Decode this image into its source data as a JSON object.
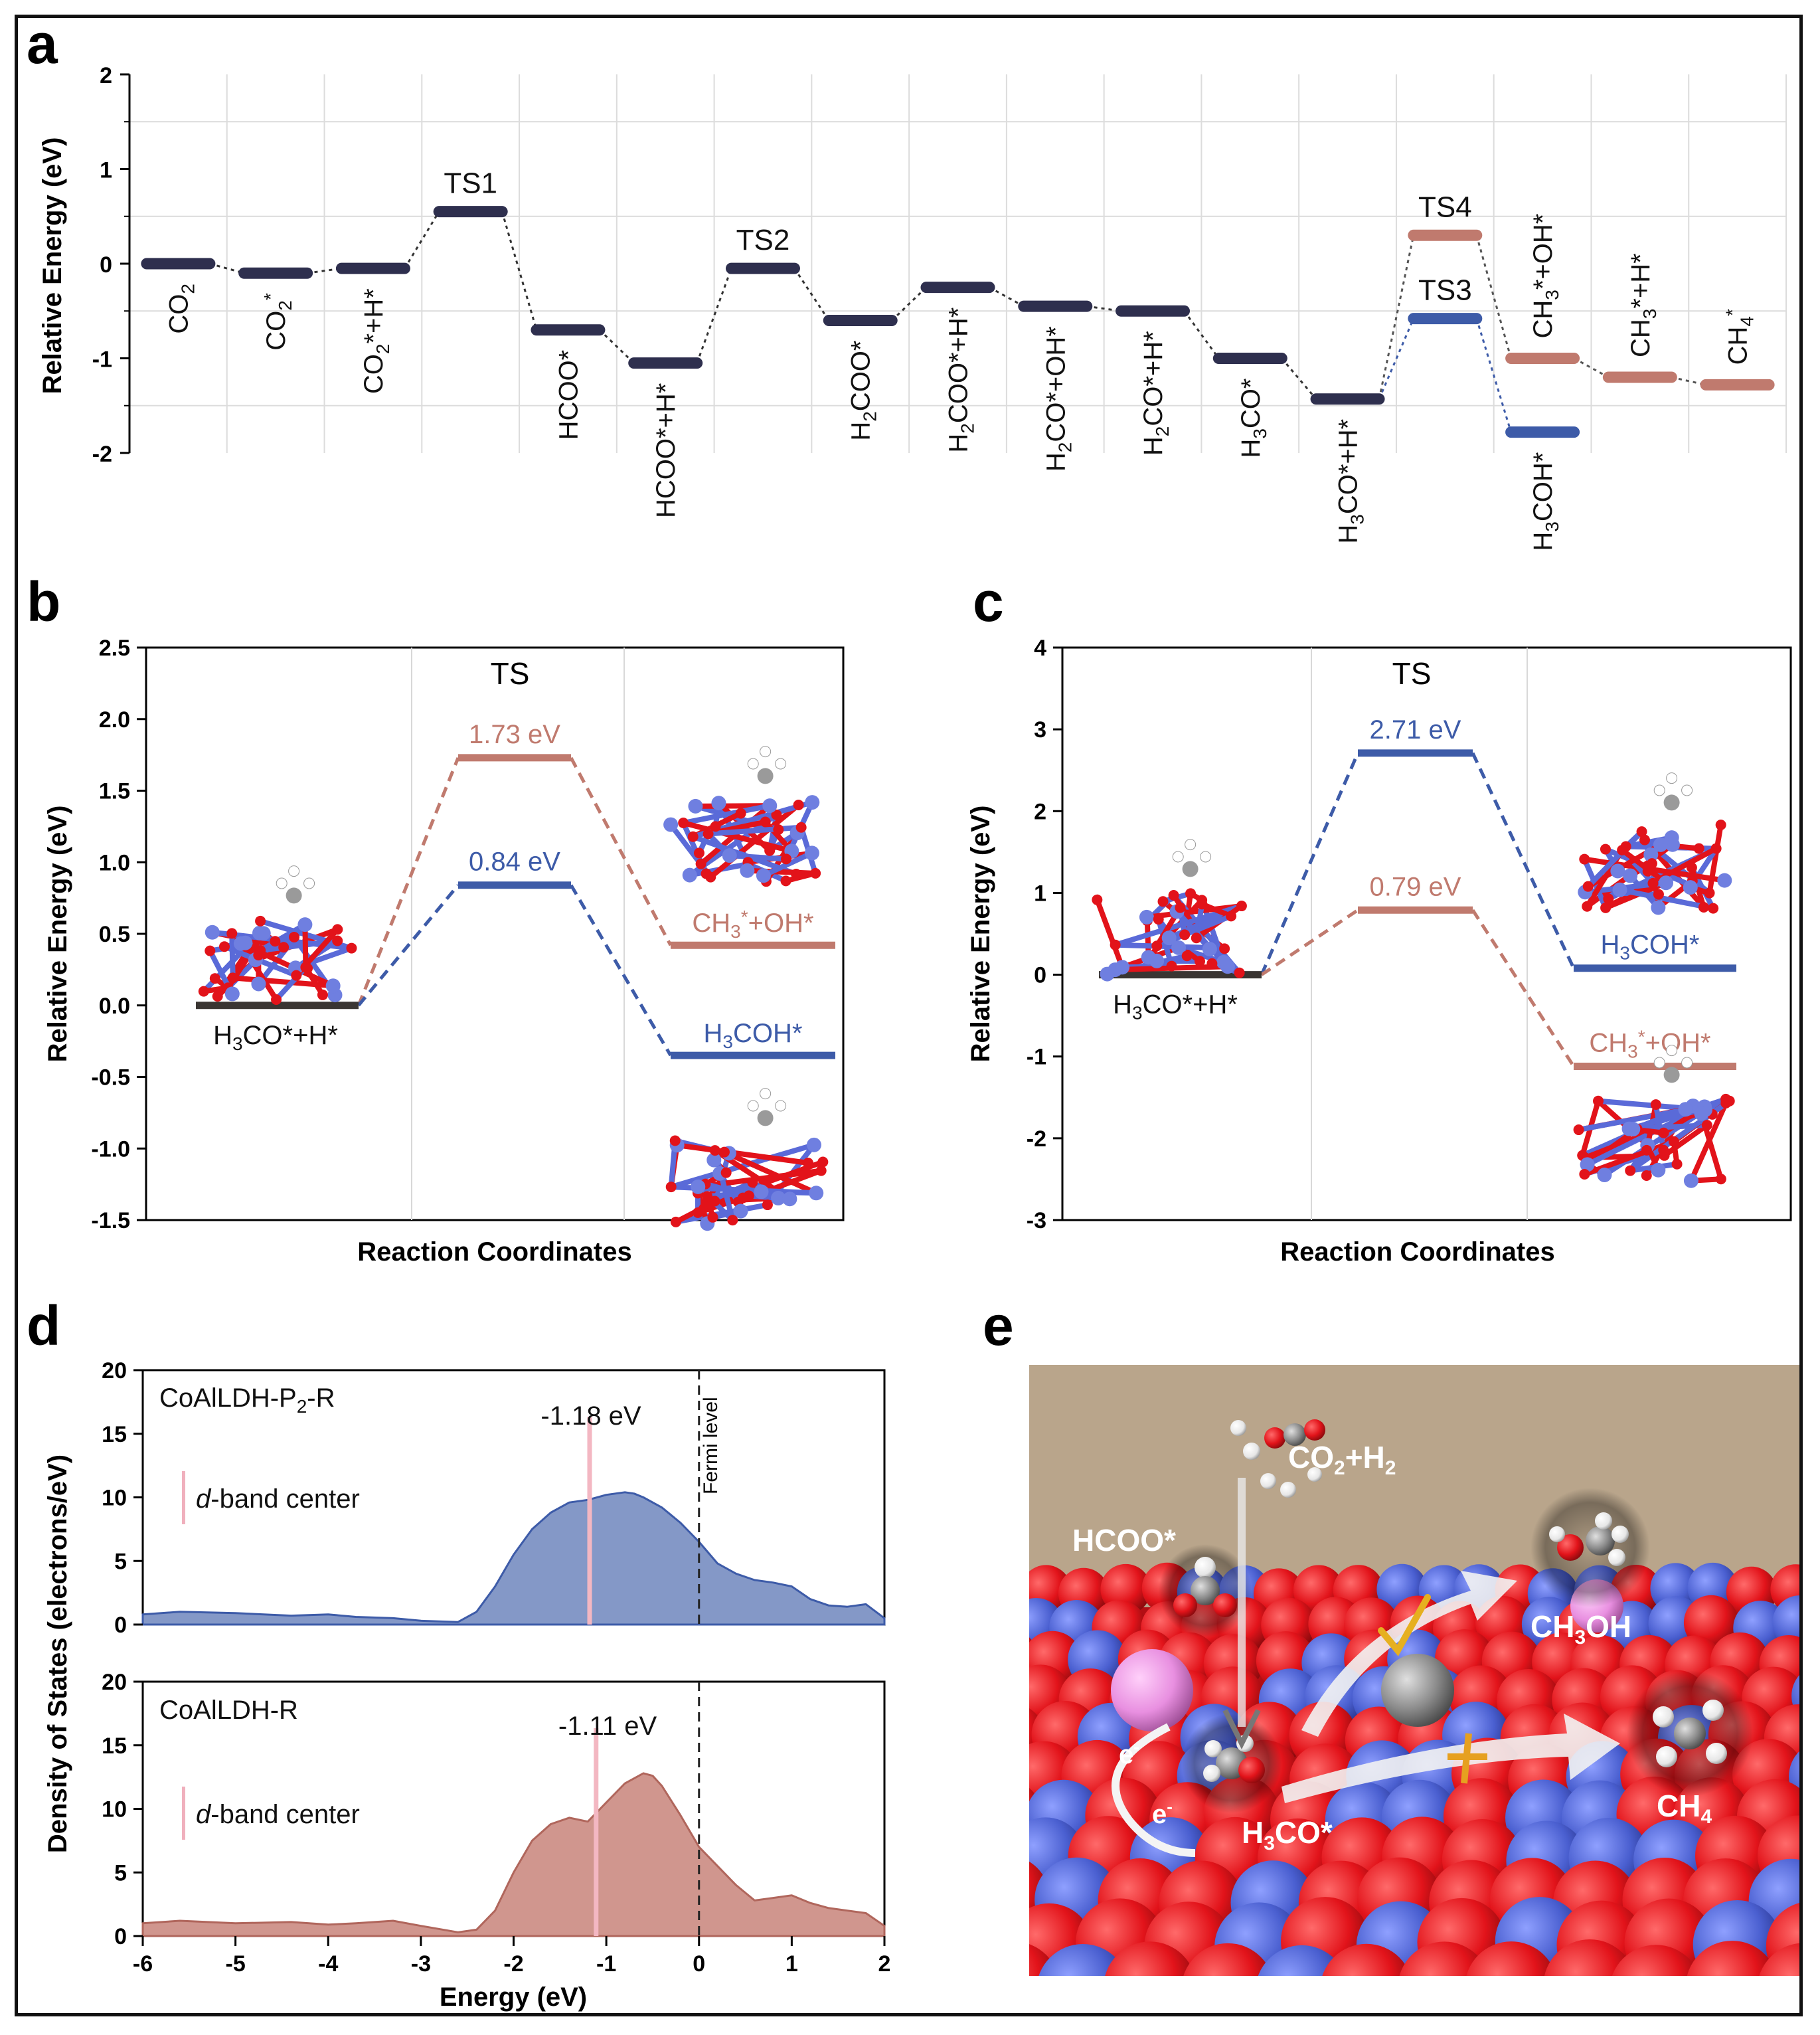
{
  "panel_labels": {
    "a": "a",
    "b": "b",
    "c": "c",
    "d": "d",
    "e": "e"
  },
  "chart_data": [
    {
      "id": "a",
      "type": "energy-profile",
      "ylabel": "Relative Energy (eV)",
      "ylim": [
        -2,
        2
      ],
      "yticks": [
        "2",
        "1",
        "0",
        "-1",
        "-2"
      ],
      "grid": true,
      "states": [
        {
          "label": "CO2",
          "lbl_html": "CO<tspan dy='10' font-size='28'>2</tspan>",
          "value": 0.0,
          "pathway": "main",
          "label_pos": "below"
        },
        {
          "label": "CO2*",
          "lbl_html": "CO<tspan dy='10' font-size='28'>2</tspan><tspan dy='-22' font-size='28'>*</tspan>",
          "value": -0.1,
          "pathway": "main",
          "label_pos": "below"
        },
        {
          "label": "CO2*+H*",
          "lbl_html": "CO<tspan dy='10' font-size='28'>2</tspan><tspan dy='-10'>*+H*</tspan>",
          "value": -0.05,
          "pathway": "main",
          "label_pos": "below"
        },
        {
          "label": "TS1",
          "lbl_html": "TS1",
          "value": 0.55,
          "pathway": "main",
          "label_pos": "above"
        },
        {
          "label": "HCOO*",
          "lbl_html": "HCOO*",
          "value": -0.7,
          "pathway": "main",
          "label_pos": "below"
        },
        {
          "label": "HCOO*+H*",
          "lbl_html": "HCOO*+H*",
          "value": -1.05,
          "pathway": "main",
          "label_pos": "below"
        },
        {
          "label": "TS2",
          "lbl_html": "TS2",
          "value": -0.05,
          "pathway": "main",
          "label_pos": "above"
        },
        {
          "label": "H2COO*",
          "lbl_html": "H<tspan dy='10' font-size='28'>2</tspan><tspan dy='-10'>COO*</tspan>",
          "value": -0.6,
          "pathway": "main",
          "label_pos": "below"
        },
        {
          "label": "H2COO*+H*",
          "lbl_html": "H<tspan dy='10' font-size='28'>2</tspan><tspan dy='-10'>COO*+H*</tspan>",
          "value": -0.25,
          "pathway": "main",
          "label_pos": "below"
        },
        {
          "label": "H2CO*+OH*",
          "lbl_html": "H<tspan dy='10' font-size='28'>2</tspan><tspan dy='-10'>CO*+OH*</tspan>",
          "value": -0.45,
          "pathway": "main",
          "label_pos": "below"
        },
        {
          "label": "H2CO*+H*",
          "lbl_html": "H<tspan dy='10' font-size='28'>2</tspan><tspan dy='-10'>CO*+H*</tspan>",
          "value": -0.5,
          "pathway": "main",
          "label_pos": "below"
        },
        {
          "label": "H3CO*",
          "lbl_html": "H<tspan dy='10' font-size='28'>3</tspan><tspan dy='-10'>CO*</tspan>",
          "value": -1.0,
          "pathway": "main",
          "label_pos": "below"
        },
        {
          "label": "H3CO*+H*",
          "lbl_html": "H<tspan dy='10' font-size='28'>3</tspan><tspan dy='-10'>CO*+H*</tspan>",
          "value": -1.43,
          "pathway": "main",
          "label_pos": "below"
        }
      ],
      "branch_methanol": [
        {
          "label": "TS3",
          "lbl_html": "TS3",
          "value": -0.58,
          "label_pos": "above"
        },
        {
          "label": "H3COH*",
          "lbl_html": "H<tspan dy='10' font-size='28'>3</tspan><tspan dy='-10'>COH*</tspan>",
          "value": -1.78,
          "label_pos": "below"
        }
      ],
      "branch_methane": [
        {
          "label": "TS4",
          "lbl_html": "TS4",
          "value": 0.3,
          "label_pos": "above"
        },
        {
          "label": "CH3*+OH*",
          "lbl_html": "CH<tspan dy='10' font-size='28'>3</tspan><tspan dy='-10'>*+OH*</tspan>",
          "value": -1.0,
          "label_pos": "above"
        },
        {
          "label": "CH3*+H*",
          "lbl_html": "CH<tspan dy='10' font-size='28'>3</tspan><tspan dy='-10'>*+H*</tspan>",
          "value": -1.2,
          "label_pos": "above"
        },
        {
          "label": "CH4*",
          "lbl_html": "CH<tspan dy='10' font-size='28'>4</tspan><tspan dy='-22' font-size='28'>*</tspan>",
          "value": -1.28,
          "label_pos": "above"
        }
      ],
      "colors": {
        "main": "#2e2f4e",
        "methanol": "#3d5ba8",
        "methane": "#c07a6e"
      }
    },
    {
      "id": "b",
      "type": "energy-profile",
      "title": "TS",
      "xlabel": "Reaction Coordinates",
      "ylabel": "Relative Energy (eV)",
      "ylim": [
        -1.5,
        2.5
      ],
      "yticks": [
        "2.5",
        "2.0",
        "1.5",
        "1.0",
        "0.5",
        "0.0",
        "-0.5",
        "-1.0",
        "-1.5"
      ],
      "initial": {
        "label": "H3CO*+H*",
        "value": 0.0
      },
      "series": [
        {
          "name": "CH3*+OH*",
          "ts_value": 1.73,
          "ts_label": "1.73 eV",
          "final_value": 0.42,
          "color": "#c07a6e"
        },
        {
          "name": "H3COH*",
          "ts_value": 0.84,
          "ts_label": "0.84 eV",
          "final_value": -0.35,
          "color": "#3d5ba8"
        }
      ]
    },
    {
      "id": "c",
      "type": "energy-profile",
      "title": "TS",
      "xlabel": "Reaction Coordinates",
      "ylabel": "Relative Energy (eV)",
      "ylim": [
        -3,
        4
      ],
      "yticks": [
        "4",
        "3",
        "2",
        "1",
        "0",
        "-1",
        "-2",
        "-3"
      ],
      "initial": {
        "label": "H3CO*+H*",
        "value": 0.0
      },
      "series": [
        {
          "name": "H3COH*",
          "ts_value": 2.71,
          "ts_label": "2.71 eV",
          "final_value": 0.08,
          "color": "#3d5ba8"
        },
        {
          "name": "CH3*+OH*",
          "ts_value": 0.79,
          "ts_label": "0.79 eV",
          "final_value": -1.12,
          "color": "#c07a6e"
        }
      ]
    },
    {
      "id": "d",
      "type": "area",
      "xlabel": "Energy (eV)",
      "ylabel": "Density of States (electrons/eV)",
      "xlim": [
        -6,
        2
      ],
      "xticks": [
        "-6",
        "-5",
        "-4",
        "-3",
        "-2",
        "-1",
        "0",
        "1",
        "2"
      ],
      "fermi_label": "Fermi level",
      "legend": "d-band center",
      "subplots": [
        {
          "name": "CoAlLDH-P2-R",
          "ylim": [
            0,
            20
          ],
          "yticks": [
            "20",
            "15",
            "10",
            "5",
            "0"
          ],
          "dband_center": -1.18,
          "dband_label": "-1.18 eV",
          "color": "#6f86bd",
          "x": [
            -6,
            -5.6,
            -5,
            -4.4,
            -4,
            -3.7,
            -3.3,
            -3,
            -2.6,
            -2.4,
            -2.2,
            -2,
            -1.8,
            -1.6,
            -1.4,
            -1.2,
            -1.0,
            -0.8,
            -0.7,
            -0.6,
            -0.4,
            -0.2,
            0,
            0.2,
            0.4,
            0.6,
            0.8,
            1.0,
            1.2,
            1.4,
            1.6,
            1.8,
            2.0
          ],
          "y": [
            0.8,
            1.0,
            0.9,
            0.7,
            0.8,
            0.6,
            0.5,
            0.3,
            0.2,
            1.0,
            3.0,
            5.5,
            7.5,
            8.8,
            9.6,
            9.8,
            10.2,
            10.4,
            10.3,
            10.0,
            9.2,
            8.0,
            6.5,
            4.8,
            4.0,
            3.5,
            3.3,
            3.0,
            2.0,
            1.5,
            1.4,
            1.6,
            0.5
          ]
        },
        {
          "name": "CoAlLDH-R",
          "ylim": [
            0,
            20
          ],
          "yticks": [
            "20",
            "15",
            "10",
            "5",
            "0"
          ],
          "dband_center": -1.11,
          "dband_label": "-1.11 eV",
          "color": "#c8847a",
          "x": [
            -6,
            -5.6,
            -5,
            -4.4,
            -4,
            -3.7,
            -3.3,
            -3,
            -2.6,
            -2.4,
            -2.2,
            -2,
            -1.8,
            -1.6,
            -1.4,
            -1.2,
            -1.0,
            -0.8,
            -0.6,
            -0.5,
            -0.4,
            -0.2,
            0,
            0.2,
            0.4,
            0.6,
            0.8,
            1.0,
            1.2,
            1.4,
            1.6,
            1.8,
            2.0
          ],
          "y": [
            1.0,
            1.2,
            1.0,
            1.1,
            0.9,
            1.0,
            1.2,
            0.8,
            0.3,
            0.5,
            2.0,
            5.0,
            7.5,
            8.8,
            9.3,
            9.0,
            10.5,
            12.0,
            12.8,
            12.6,
            11.8,
            9.5,
            7.0,
            5.5,
            4.0,
            2.8,
            3.0,
            3.2,
            2.6,
            2.2,
            2.0,
            1.8,
            0.8
          ]
        }
      ]
    }
  ],
  "panel_b_labels": {
    "initial": "H<tspan dy='9' font-size='28'>3</tspan><tspan dy='-9'>CO*+H*</tspan>",
    "methane": "CH<tspan dy='9' font-size='28'>3</tspan><tspan dy='-22' font-size='28'>*</tspan><tspan dy='13'>+OH*</tspan>",
    "methanol": "H<tspan dy='9' font-size='28'>3</tspan><tspan dy='-9'>COH*</tspan>"
  },
  "panel_d_names": {
    "top": "CoAlLDH-P<tspan dy='9' font-size='28'>2</tspan><tspan dy='-9'>-R</tspan>",
    "bottom": "CoAlLDH-R"
  },
  "panel_d_legend": "<tspan font-style='italic'>d</tspan>-band center",
  "panel_e": {
    "labels": {
      "reactant": "CO<tspan dy='10' font-size='30'>2</tspan><tspan dy='-10'>+H</tspan><tspan dy='10' font-size='30'>2</tspan>",
      "formate": "HCOO*",
      "methanol": "CH<tspan dy='10' font-size='30'>3</tspan><tspan dy='-10'>OH</tspan>",
      "methoxy": "H<tspan dy='10' font-size='30'>3</tspan><tspan dy='-10'>CO*</tspan>",
      "methane": "CH<tspan dy='10' font-size='30'>4</tspan>",
      "electron": "e<tspan dy='-16' font-size='26'>-</tspan>"
    },
    "colors": {
      "background": "#b9a58b",
      "oxygen": "#e2131a",
      "cobalt": "#4a5fd0",
      "carbon": "#8a8a8a",
      "phosphorus": "#e88fe0",
      "allowed": "#e6b020",
      "blocked": "#e6a020"
    }
  }
}
